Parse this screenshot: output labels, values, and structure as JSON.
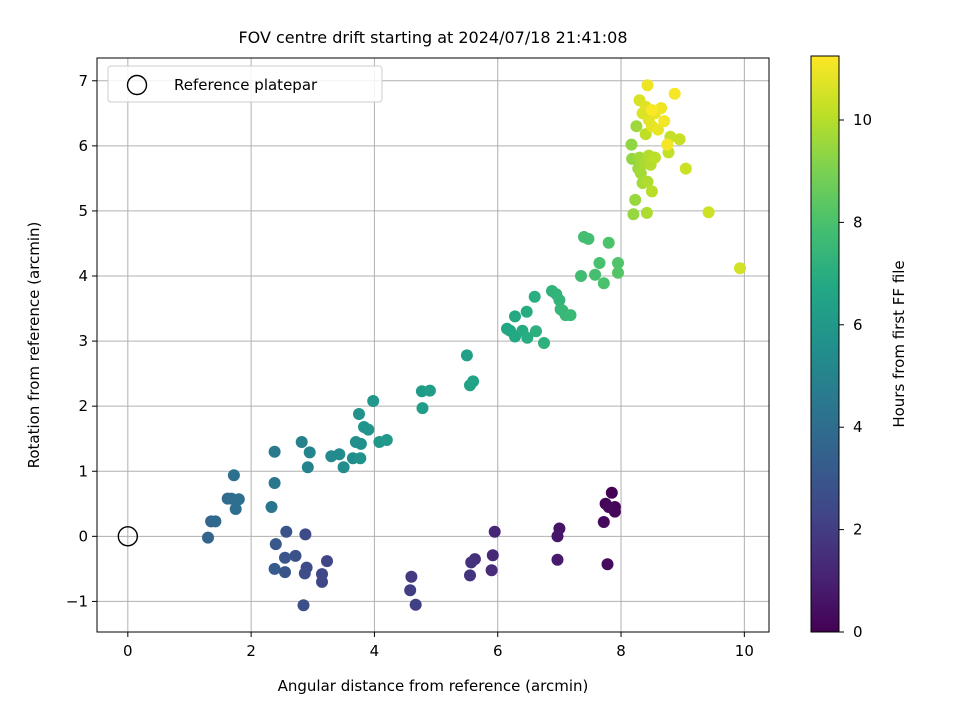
{
  "chart_data": {
    "type": "scatter",
    "title": "FOV centre drift starting at 2024/07/18 21:41:08",
    "xlabel": "Angular distance from reference (arcmin)",
    "ylabel": "Rotation from reference (arcmin)",
    "xlim": [
      -0.5,
      10.4
    ],
    "ylim": [
      -1.47,
      7.35
    ],
    "xticks": [
      0,
      2,
      4,
      6,
      8,
      10
    ],
    "yticks": [
      -1,
      0,
      1,
      2,
      3,
      4,
      5,
      6,
      7
    ],
    "grid": true,
    "legend": {
      "location": "top-left",
      "entries": [
        {
          "label": "Reference platepar",
          "marker": "open-circle"
        }
      ]
    },
    "reference_point": {
      "x": 0,
      "y": 0
    },
    "colorbar": {
      "label": "Hours from first FF file",
      "colormap": "viridis",
      "range": [
        0,
        11.25
      ],
      "ticks": [
        0,
        2,
        4,
        6,
        8,
        10
      ]
    },
    "points": [
      [
        7.85,
        0.67,
        0.05
      ],
      [
        7.75,
        0.5,
        0.1
      ],
      [
        7.9,
        0.45,
        0.15
      ],
      [
        7.9,
        0.38,
        0.2
      ],
      [
        7.8,
        0.45,
        0.25
      ],
      [
        7.72,
        0.22,
        0.3
      ],
      [
        7.78,
        -0.43,
        0.35
      ],
      [
        7.0,
        0.12,
        0.6
      ],
      [
        6.97,
        0.0,
        0.7
      ],
      [
        6.97,
        -0.36,
        0.8
      ],
      [
        5.95,
        0.07,
        1.2
      ],
      [
        5.92,
        -0.29,
        1.3
      ],
      [
        5.9,
        -0.52,
        1.4
      ],
      [
        5.63,
        -0.35,
        1.5
      ],
      [
        5.57,
        -0.4,
        1.6
      ],
      [
        5.55,
        -0.6,
        1.7
      ],
      [
        4.6,
        -0.62,
        1.9
      ],
      [
        4.58,
        -0.83,
        2.0
      ],
      [
        4.67,
        -1.05,
        2.1
      ],
      [
        3.23,
        -0.38,
        2.3
      ],
      [
        3.15,
        -0.58,
        2.4
      ],
      [
        3.15,
        -0.7,
        2.45
      ],
      [
        2.88,
        0.03,
        2.55
      ],
      [
        2.9,
        -0.48,
        2.6
      ],
      [
        2.87,
        -0.57,
        2.65
      ],
      [
        2.85,
        -1.06,
        2.7
      ],
      [
        2.72,
        -0.3,
        2.8
      ],
      [
        2.57,
        0.07,
        2.9
      ],
      [
        2.55,
        -0.33,
        2.95
      ],
      [
        2.55,
        -0.55,
        3.0
      ],
      [
        2.4,
        -0.12,
        3.1
      ],
      [
        2.38,
        -0.5,
        3.2
      ],
      [
        1.3,
        -0.02,
        3.6
      ],
      [
        1.35,
        0.23,
        3.7
      ],
      [
        1.42,
        0.23,
        3.8
      ],
      [
        1.62,
        0.58,
        3.9
      ],
      [
        1.68,
        0.58,
        4.0
      ],
      [
        1.75,
        0.42,
        4.05
      ],
      [
        1.8,
        0.57,
        4.1
      ],
      [
        1.72,
        0.94,
        4.15
      ],
      [
        2.33,
        0.45,
        4.35
      ],
      [
        2.38,
        0.82,
        4.45
      ],
      [
        2.38,
        1.3,
        4.55
      ],
      [
        2.82,
        1.45,
        4.9
      ],
      [
        2.92,
        1.06,
        5.0
      ],
      [
        2.95,
        1.29,
        5.1
      ],
      [
        3.3,
        1.23,
        5.3
      ],
      [
        3.43,
        1.26,
        5.35
      ],
      [
        3.5,
        1.06,
        5.4
      ],
      [
        3.65,
        1.2,
        5.5
      ],
      [
        3.7,
        1.45,
        5.55
      ],
      [
        3.78,
        1.42,
        5.6
      ],
      [
        3.77,
        1.2,
        5.65
      ],
      [
        3.75,
        1.88,
        5.7
      ],
      [
        3.83,
        1.68,
        5.75
      ],
      [
        3.9,
        1.64,
        5.8
      ],
      [
        3.98,
        2.08,
        5.85
      ],
      [
        4.08,
        1.45,
        5.9
      ],
      [
        4.2,
        1.48,
        5.95
      ],
      [
        4.77,
        2.23,
        6.1
      ],
      [
        4.78,
        1.97,
        6.15
      ],
      [
        4.9,
        2.24,
        6.2
      ],
      [
        5.5,
        2.78,
        6.35
      ],
      [
        5.55,
        2.32,
        6.4
      ],
      [
        5.6,
        2.38,
        6.45
      ],
      [
        6.15,
        3.19,
        6.65
      ],
      [
        6.2,
        3.16,
        6.7
      ],
      [
        6.28,
        3.07,
        6.75
      ],
      [
        6.28,
        3.38,
        6.8
      ],
      [
        6.4,
        3.16,
        6.85
      ],
      [
        6.47,
        3.45,
        6.9
      ],
      [
        6.48,
        3.05,
        6.95
      ],
      [
        6.6,
        3.68,
        7.05
      ],
      [
        6.62,
        3.15,
        7.1
      ],
      [
        6.75,
        2.97,
        7.15
      ],
      [
        6.88,
        3.77,
        7.25
      ],
      [
        6.95,
        3.72,
        7.3
      ],
      [
        7.0,
        3.63,
        7.35
      ],
      [
        7.02,
        3.49,
        7.4
      ],
      [
        7.05,
        3.47,
        7.45
      ],
      [
        7.1,
        3.4,
        7.5
      ],
      [
        7.18,
        3.4,
        7.55
      ],
      [
        7.35,
        4.0,
        7.75
      ],
      [
        7.4,
        4.6,
        7.8
      ],
      [
        7.47,
        4.57,
        7.85
      ],
      [
        7.58,
        4.02,
        7.9
      ],
      [
        7.65,
        4.2,
        7.95
      ],
      [
        7.72,
        3.89,
        8.0
      ],
      [
        7.8,
        4.51,
        8.05
      ],
      [
        7.95,
        4.2,
        8.15
      ],
      [
        7.95,
        4.05,
        8.2
      ],
      [
        8.17,
        6.02,
        9.35
      ],
      [
        8.18,
        5.8,
        9.4
      ],
      [
        8.2,
        4.95,
        9.45
      ],
      [
        8.23,
        5.17,
        9.5
      ],
      [
        8.28,
        5.65,
        9.55
      ],
      [
        8.25,
        6.3,
        9.6
      ],
      [
        8.3,
        5.82,
        9.65
      ],
      [
        8.32,
        5.58,
        9.7
      ],
      [
        8.35,
        5.43,
        9.75
      ],
      [
        8.38,
        5.73,
        9.8
      ],
      [
        8.42,
        4.97,
        9.85
      ],
      [
        8.43,
        5.45,
        9.9
      ],
      [
        8.45,
        5.85,
        9.95
      ],
      [
        8.48,
        5.71,
        10.0
      ],
      [
        8.5,
        5.3,
        10.05
      ],
      [
        8.55,
        5.82,
        10.1
      ],
      [
        8.4,
        6.18,
        10.15
      ],
      [
        8.77,
        5.9,
        10.2
      ],
      [
        8.8,
        6.14,
        10.25
      ],
      [
        8.95,
        6.1,
        10.3
      ],
      [
        9.05,
        5.65,
        10.35
      ],
      [
        9.42,
        4.98,
        10.4
      ],
      [
        9.93,
        4.12,
        10.5
      ],
      [
        8.3,
        6.7,
        10.6
      ],
      [
        8.35,
        6.5,
        10.65
      ],
      [
        8.4,
        6.6,
        10.7
      ],
      [
        8.45,
        6.4,
        10.75
      ],
      [
        8.5,
        6.3,
        10.8
      ],
      [
        8.55,
        6.5,
        10.85
      ],
      [
        8.6,
        6.25,
        10.9
      ],
      [
        8.43,
        6.93,
        10.95
      ],
      [
        8.65,
        6.58,
        11.0
      ],
      [
        8.7,
        6.38,
        11.05
      ],
      [
        8.75,
        6.02,
        11.1
      ],
      [
        8.87,
        6.8,
        11.15
      ],
      [
        8.5,
        6.55,
        11.2
      ]
    ]
  }
}
